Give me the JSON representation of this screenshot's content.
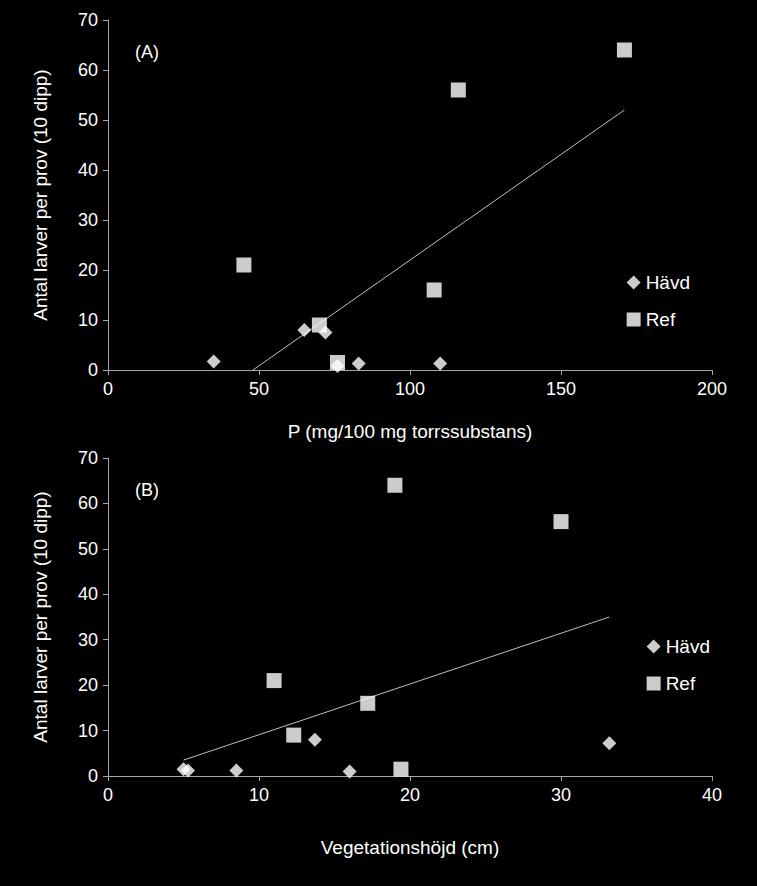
{
  "chart_data": [
    {
      "type": "scatter",
      "title": "(A)",
      "x_label": "P (mg/100 mg torrssubstans)",
      "y_label": "Antal larver per prov (10 dipp)",
      "xlim": [
        0,
        200
      ],
      "xticks": [
        0,
        50,
        100,
        150,
        200
      ],
      "ylim": [
        0,
        70
      ],
      "yticks": [
        0,
        10,
        20,
        30,
        40,
        50,
        60,
        70
      ],
      "grid": false,
      "legend": "right",
      "series": [
        {
          "name": "Hävd",
          "color": "#ffffff",
          "marker": "diamond",
          "x": [
            35,
            65,
            72,
            76,
            83,
            110
          ],
          "values": [
            1.7,
            8,
            7.5,
            0.8,
            1.3,
            1.3
          ]
        },
        {
          "name": "Ref",
          "color": "#ffffff",
          "marker": "square",
          "x": [
            45,
            70,
            76,
            108,
            116,
            171
          ],
          "values": [
            21,
            9,
            1.5,
            16,
            56,
            64
          ]
        }
      ],
      "trend_line": {
        "color": "#bfbfbf",
        "x": [
          48,
          171
        ],
        "values": [
          0,
          52
        ]
      }
    },
    {
      "type": "scatter",
      "title": "(B)",
      "x_label": "Vegetationshöjd (cm)",
      "y_label": "Antal larver per prov (10 dipp)",
      "xlim": [
        0,
        40
      ],
      "xticks": [
        0,
        10,
        20,
        30,
        40
      ],
      "ylim": [
        0,
        70
      ],
      "yticks": [
        0,
        10,
        20,
        30,
        40,
        50,
        60,
        70
      ],
      "grid": false,
      "legend": "right",
      "series": [
        {
          "name": "Hävd",
          "color": "#ffffff",
          "marker": "diamond",
          "x": [
            5,
            5.3,
            8.5,
            13.7,
            16,
            33.2
          ],
          "values": [
            1.5,
            1.2,
            1.2,
            8,
            1,
            7.2
          ]
        },
        {
          "name": "Ref",
          "color": "#ffffff",
          "marker": "square",
          "x": [
            11,
            12.3,
            17.2,
            19,
            19.4,
            30
          ],
          "values": [
            21,
            9,
            16,
            64,
            1.5,
            56
          ]
        }
      ],
      "trend_line": {
        "color": "#bfbfbf",
        "x": [
          5,
          33.2
        ],
        "values": [
          3.5,
          35
        ]
      }
    }
  ]
}
